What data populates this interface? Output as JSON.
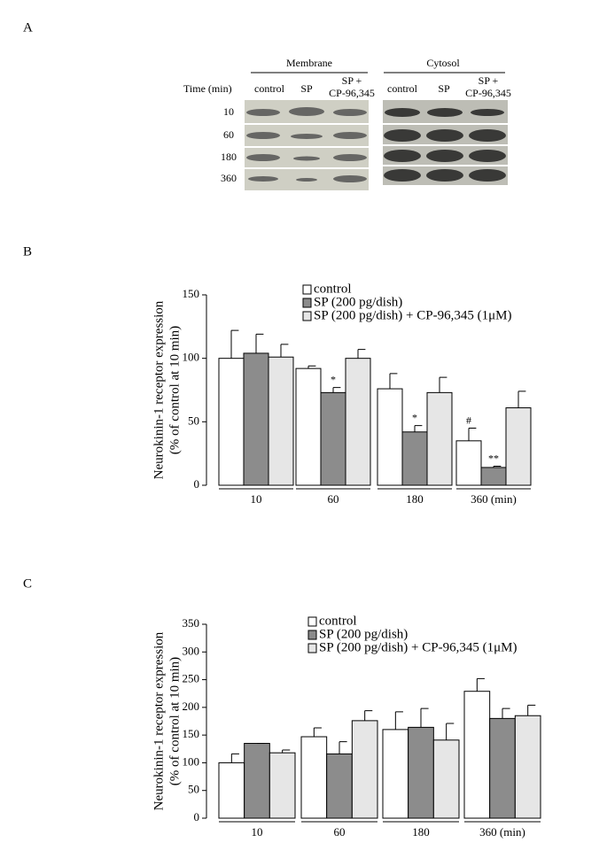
{
  "blot": {
    "panel_label": "A",
    "time_label": "Time (min)",
    "times": [
      "10",
      "60",
      "180",
      "360"
    ],
    "fractions": [
      {
        "label": "Membrane",
        "lanes": [
          [
            "control"
          ],
          [
            "SP"
          ],
          [
            "SP +",
            "CP-96,345"
          ]
        ]
      },
      {
        "label": "Cytosol",
        "lanes": [
          [
            "control"
          ],
          [
            "SP"
          ],
          [
            "SP +",
            "CP-96,345"
          ]
        ]
      }
    ]
  },
  "chart_data": [
    {
      "type": "bar",
      "panel_label": "B",
      "ylabel": [
        "Neurokinin-1 receptor expression",
        "(% of control at 10 min)"
      ],
      "categories": [
        "10",
        "60",
        "180",
        "360 (min)"
      ],
      "series": [
        {
          "name": "control",
          "color": "#ffffff",
          "values": [
            100,
            92,
            76,
            35
          ],
          "errors": [
            22,
            2,
            12,
            10
          ],
          "significance": [
            null,
            null,
            null,
            "#"
          ]
        },
        {
          "name": "SP (200 pg/dish)",
          "color": "#8c8c8c",
          "values": [
            104,
            73,
            42,
            14
          ],
          "errors": [
            15,
            4,
            5,
            1
          ],
          "significance": [
            null,
            "*",
            "*",
            "**"
          ]
        },
        {
          "name": "SP (200 pg/dish) + CP-96,345 (1μM)",
          "color": "#e6e6e6",
          "values": [
            101,
            100,
            73,
            61
          ],
          "errors": [
            10,
            7,
            12,
            13
          ]
        }
      ],
      "ylim": [
        0,
        150
      ],
      "yticks": [
        0,
        50,
        100,
        150
      ]
    },
    {
      "type": "bar",
      "panel_label": "C",
      "ylabel": [
        "Neurokinin-1 receptor expression",
        "(% of control at 10 min)"
      ],
      "categories": [
        "10",
        "60",
        "180",
        "360 (min)"
      ],
      "series": [
        {
          "name": "control",
          "color": "#ffffff",
          "values": [
            100,
            147,
            160,
            229
          ],
          "errors": [
            16,
            16,
            32,
            23
          ]
        },
        {
          "name": "SP (200 pg/dish)",
          "color": "#8c8c8c",
          "values": [
            135,
            116,
            164,
            180
          ],
          "errors": [
            0,
            22,
            34,
            18
          ]
        },
        {
          "name": "SP (200 pg/dish) + CP-96,345 (1μM)",
          "color": "#e6e6e6",
          "values": [
            118,
            176,
            141,
            185
          ],
          "errors": [
            5,
            18,
            30,
            19
          ]
        }
      ],
      "ylim": [
        0,
        350
      ],
      "yticks": [
        0,
        50,
        100,
        150,
        200,
        250,
        300,
        350
      ]
    }
  ]
}
